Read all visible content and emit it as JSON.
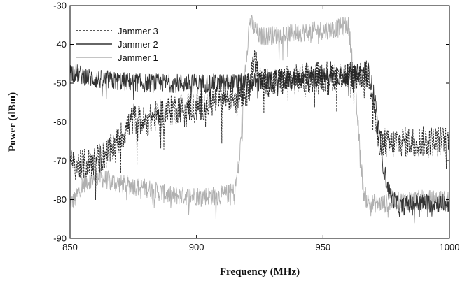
{
  "chart_data": {
    "type": "line",
    "xlabel": "Frequency (MHz)",
    "ylabel": "Power (dBm)",
    "xlim": [
      850,
      1000
    ],
    "ylim": [
      -90,
      -30
    ],
    "xticks": [
      "850",
      "900",
      "950",
      "1000"
    ],
    "yticks": [
      "-30",
      "-40",
      "-50",
      "-60",
      "-70",
      "-80",
      "-90"
    ],
    "grid": false,
    "legend_position": "top-left",
    "series": [
      {
        "name": "Jammer 3",
        "color": "#222222",
        "dash": "dashed",
        "noise": 4,
        "x": [
          850,
          855,
          860,
          865,
          870,
          875,
          880,
          885,
          890,
          895,
          900,
          905,
          910,
          915,
          920,
          923,
          926,
          930,
          940,
          950,
          960,
          965,
          968,
          970,
          972,
          974,
          976,
          980,
          990,
          1000
        ],
        "y": [
          -71,
          -71,
          -70,
          -68,
          -64,
          -59,
          -60,
          -58,
          -57,
          -56,
          -56,
          -55,
          -54,
          -53,
          -52,
          -45,
          -49,
          -50,
          -49,
          -48,
          -48,
          -48,
          -48,
          -54,
          -67,
          -65,
          -66,
          -65,
          -65,
          -65
        ]
      },
      {
        "name": "Jammer 2",
        "color": "#333333",
        "dash": "solid",
        "noise": 2.5,
        "x": [
          850,
          860,
          880,
          900,
          920,
          940,
          960,
          968,
          970,
          972,
          974,
          976,
          980,
          985,
          1000
        ],
        "y": [
          -47,
          -49,
          -50,
          -50,
          -50,
          -49,
          -48,
          -47,
          -52,
          -62,
          -72,
          -78,
          -82,
          -81,
          -81
        ]
      },
      {
        "name": "Jammer 1",
        "color": "#b0b0b0",
        "dash": "solid",
        "noise": 2.5,
        "x": [
          850,
          852,
          855,
          860,
          870,
          880,
          890,
          900,
          910,
          915,
          917,
          919,
          921,
          925,
          940,
          955,
          960,
          962,
          964,
          966,
          968,
          975,
          985,
          1000
        ],
        "y": [
          -81,
          -80,
          -76,
          -74,
          -76,
          -77,
          -79,
          -79,
          -79,
          -78,
          -70,
          -48,
          -34,
          -38,
          -37,
          -36,
          -35,
          -46,
          -62,
          -78,
          -81,
          -81,
          -80,
          -80
        ]
      }
    ]
  }
}
